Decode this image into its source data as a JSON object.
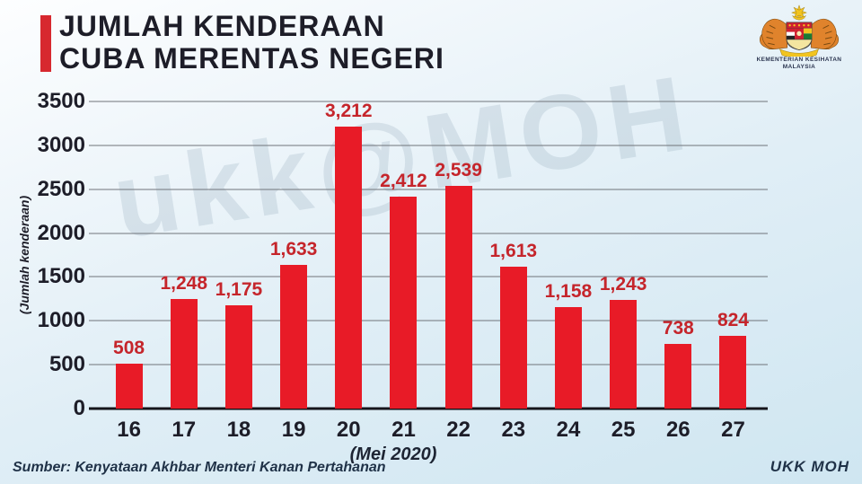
{
  "header": {
    "title_line1": "JUMLAH KENDERAAN",
    "title_line2": "CUBA MERENTAS NEGERI",
    "accent_color": "#d7282f",
    "logo": {
      "name": "jata-negara-kementerian-kesihatan",
      "caption_line1": "KEMENTERIAN KESIHATAN",
      "caption_line2": "MALAYSIA"
    }
  },
  "chart_data": {
    "type": "bar",
    "title": "JUMLAH KENDERAAN CUBA MERENTAS NEGERI",
    "categories": [
      "16",
      "17",
      "18",
      "19",
      "20",
      "21",
      "22",
      "23",
      "24",
      "25",
      "26",
      "27"
    ],
    "values": [
      508,
      1248,
      1175,
      1633,
      3212,
      2412,
      2539,
      1613,
      1158,
      1243,
      738,
      824
    ],
    "xlabel": "(Mei 2020)",
    "ylabel": "(Jumlah kenderaan)",
    "ylim": [
      0,
      3500
    ],
    "yticks": [
      3500,
      3000,
      2500,
      2000,
      1500,
      1000,
      500,
      0
    ],
    "grid": true,
    "legend": "none",
    "bar_color": "#e81b27",
    "value_label_color": "#c5252b"
  },
  "watermark": {
    "text": "ukk@MOH"
  },
  "footer": {
    "source": "Sumber: Kenyataan Akhbar Menteri Kanan Pertahanan",
    "credit": "UKK MOH"
  }
}
